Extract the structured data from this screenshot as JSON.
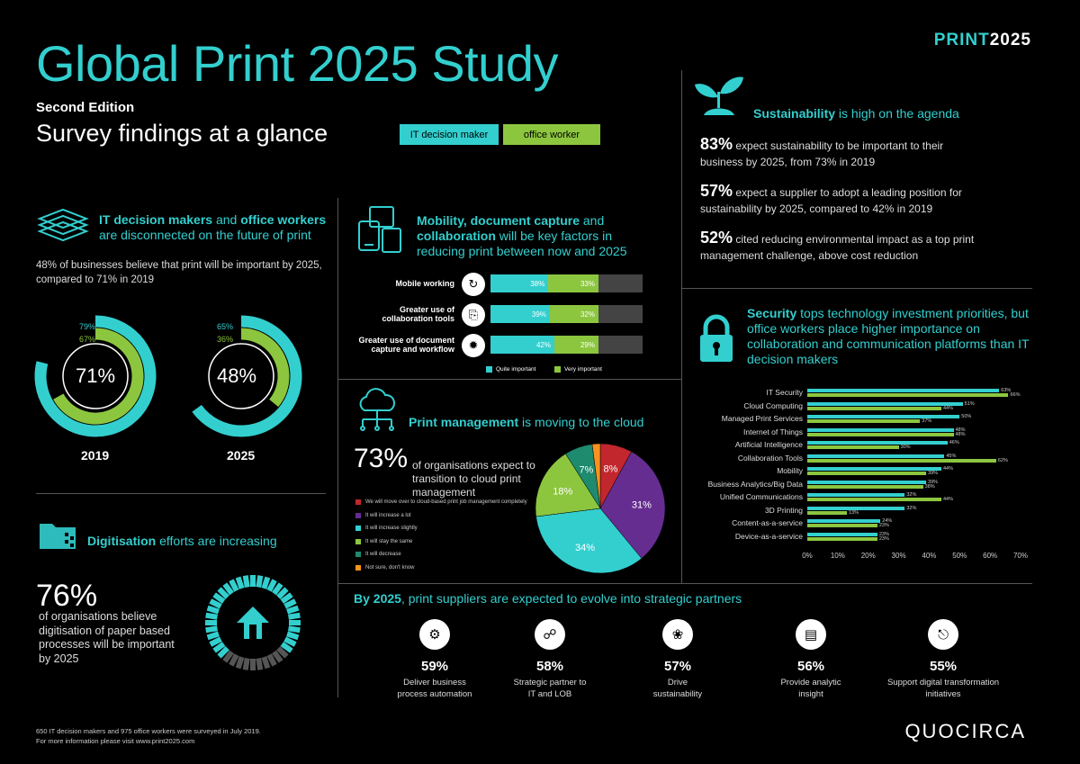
{
  "header": {
    "title": "Global Print 2025 Study",
    "edition": "Second Edition",
    "subtitle": "Survey findings at a glance",
    "legend_it": "IT decision maker",
    "legend_ow": "office worker",
    "brand_a": "PRINT",
    "brand_b": "2025"
  },
  "colors": {
    "teal": "#33cfcf",
    "green": "#8cc63f",
    "red": "#c1272d",
    "purple": "#662d91",
    "dark_green": "#1e8a6e",
    "orange": "#f7931e",
    "grey": "#444444"
  },
  "disconnect": {
    "head_a": "IT decision makers",
    "head_b": " and ",
    "head_c": "office workers",
    "head_d": "are disconnected on the future of print",
    "text": "48% of businesses believe that print will be important by 2025, compared to 71% in 2019",
    "ring_2019": {
      "center": "71%",
      "it": "79%",
      "ow": "67%",
      "it_value": 79,
      "ow_value": 67,
      "year": "2019"
    },
    "ring_2025": {
      "center": "48%",
      "it": "65%",
      "ow": "36%",
      "it_value": 65,
      "ow_value": 36,
      "year": "2025"
    }
  },
  "mobility": {
    "head_a": "Mobility, document capture",
    "head_b": " and ",
    "head_c": "collaboration",
    "head_d": " will be key factors in reducing print between now and 2025",
    "legend_quite": "Quite important",
    "legend_very": "Very important"
  },
  "print_mgmt": {
    "head_a": "Print management",
    "head_b": " is moving to the cloud",
    "big": "73%",
    "text": "of organisations expect to transition to cloud print management",
    "legend": [
      {
        "label": "We will move over to cloud-based print job management completely",
        "color": "#c1272d"
      },
      {
        "label": "It will increase a lot",
        "color": "#662d91"
      },
      {
        "label": "It will increase slightly",
        "color": "#33cfcf"
      },
      {
        "label": "It will stay the same",
        "color": "#8cc63f"
      },
      {
        "label": "It will decrease",
        "color": "#1e8a6e"
      },
      {
        "label": "Not sure, don't know",
        "color": "#f7931e"
      }
    ]
  },
  "digitisation": {
    "head_a": "Digitisation",
    "head_b": " efforts are increasing",
    "big": "76%",
    "text": "of organisations believe digitisation of paper based processes will be important by 2025",
    "value": 76
  },
  "sustainability": {
    "head_a": "Sustainability",
    "head_b": " is high on the agenda",
    "items": [
      {
        "pct": "83%",
        "text": " expect sustainability to be important to their business by 2025, from 73% in 2019"
      },
      {
        "pct": "57%",
        "text": " expect a supplier to adopt a leading position for sustainability by 2025, compared to 42% in 2019"
      },
      {
        "pct": "52%",
        "text": " cited reducing environmental impact as a top print management challenge, above cost reduction"
      }
    ]
  },
  "security": {
    "head_a": "Security",
    "head_b": " tops technology investment priorities, but office workers place higher importance on collaboration and communication platforms than IT decision makers"
  },
  "partners": {
    "head_a": "By 2025",
    "head_b": ", print suppliers are expected to evolve into strategic partners",
    "items": [
      {
        "pct": "59%",
        "text": "Deliver business process automation",
        "icon": "gears-icon"
      },
      {
        "pct": "58%",
        "text": "Strategic partner to IT and LOB",
        "icon": "handshake-icon"
      },
      {
        "pct": "57%",
        "text": "Drive sustainability",
        "icon": "plant-icon"
      },
      {
        "pct": "56%",
        "text": "Provide analytic insight",
        "icon": "analytics-icon"
      },
      {
        "pct": "55%",
        "text": "Support digital transformation initiatives",
        "icon": "digital-device-icon"
      }
    ]
  },
  "footer": {
    "line1": "650 IT decision makers and 975 office workers were surveyed in July 2019.",
    "line2": "For more information please visit www.print2025.com",
    "brand": "QUOCIRCA"
  },
  "chart_data": [
    {
      "type": "bar",
      "orientation": "horizontal",
      "stacked": true,
      "categories": [
        "Mobile working",
        "Greater use of collaboration tools",
        "Greater use of document capture and workflow"
      ],
      "series": [
        {
          "name": "Quite important",
          "values": [
            38,
            39,
            42
          ],
          "color": "#33cfcf"
        },
        {
          "name": "Very important",
          "values": [
            33,
            32,
            29
          ],
          "color": "#8cc63f"
        }
      ],
      "xlim": [
        0,
        100
      ]
    },
    {
      "type": "pie",
      "labels": [
        "We will move over to cloud-based print job management completely",
        "It will increase a lot",
        "It will increase slightly",
        "It will stay the same",
        "It will decrease",
        "Not sure, don't know"
      ],
      "values": [
        8,
        31,
        34,
        18,
        7,
        2
      ],
      "value_labels": [
        "8%",
        "31%",
        "34%",
        "18%",
        "7%",
        "2%"
      ],
      "colors": [
        "#c1272d",
        "#662d91",
        "#33cfcf",
        "#8cc63f",
        "#1e8a6e",
        "#f7931e"
      ]
    },
    {
      "type": "bar",
      "orientation": "horizontal",
      "categories": [
        "IT Security",
        "Cloud Computing",
        "Managed Print Services",
        "Internet of Things",
        "Artificial Intelligence",
        "Collaboration Tools",
        "Mobility",
        "Business Analytics/Big Data",
        "Unified Communications",
        "3D Printing",
        "Content-as-a-service",
        "Device-as-a-service"
      ],
      "series": [
        {
          "name": "IT decision maker",
          "values": [
            63,
            51,
            50,
            48,
            46,
            45,
            44,
            39,
            32,
            32,
            24,
            23
          ],
          "color": "#33cfcf"
        },
        {
          "name": "office worker",
          "values": [
            66,
            44,
            37,
            48,
            30,
            62,
            39,
            38,
            44,
            13,
            23,
            23
          ],
          "color": "#8cc63f"
        }
      ],
      "xlim": [
        0,
        70
      ],
      "xticks": [
        "0%",
        "10%",
        "20%",
        "30%",
        "40%",
        "50%",
        "60%",
        "70%"
      ]
    }
  ]
}
